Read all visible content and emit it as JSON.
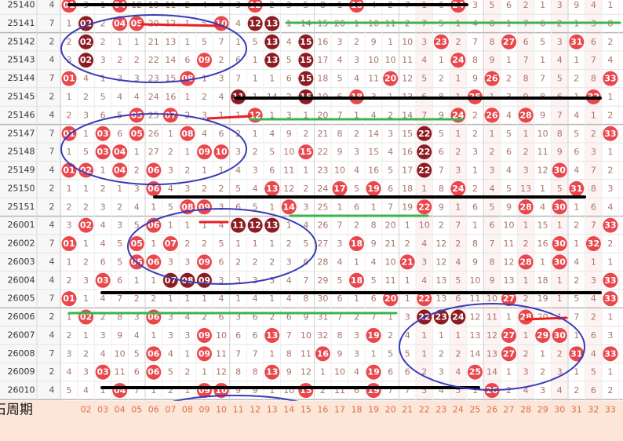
{
  "ball_colors": {
    "red": "#e9474c",
    "dark": "#8c1c22"
  },
  "rows": [
    {
      "period": "25140",
      "count": "4",
      "cells": [
        {
          "text": "01",
          "ball": "red"
        },
        "3",
        "1",
        {
          "text": "04",
          "ball": "red"
        },
        "12",
        "19",
        "11",
        "2",
        "4",
        "9",
        "3",
        {
          "text": "12",
          "ball": "red"
        },
        "2",
        "3",
        "5",
        "8",
        "1",
        {
          "text": "18",
          "ball": "red"
        },
        "4",
        "2",
        "7",
        "1",
        "6",
        {
          "text": "24",
          "ball": "red"
        },
        "3",
        "5",
        "6",
        "2",
        "1",
        "3",
        "9",
        "4",
        "1"
      ]
    },
    {
      "period": "25141",
      "count": "7",
      "cells": [
        "1",
        {
          "text": "02",
          "ball": "dark"
        },
        "2",
        {
          "text": "04",
          "ball": "red"
        },
        {
          "text": "05",
          "ball": "red"
        },
        "20",
        "12",
        "1",
        "5",
        {
          "text": "10",
          "ball": "red"
        },
        "4",
        {
          "text": "12",
          "ball": "dark"
        },
        {
          "text": "13",
          "ball": "dark"
        },
        "1",
        "14",
        "15",
        "20",
        "1",
        "10",
        "11",
        "2",
        "7",
        "5",
        "1",
        "4",
        "6",
        "1",
        "7",
        "6",
        "2",
        "1",
        "3",
        "8"
      ]
    },
    {
      "period": "25142",
      "count": "2",
      "cells": [
        "2",
        {
          "text": "02",
          "ball": "dark"
        },
        "2",
        "1",
        "1",
        "21",
        "13",
        "1",
        "5",
        "7",
        "1",
        "5",
        {
          "text": "13",
          "ball": "dark"
        },
        "4",
        {
          "text": "15",
          "ball": "dark"
        },
        "16",
        "3",
        "2",
        "9",
        "1",
        "10",
        "3",
        {
          "text": "23",
          "ball": "red"
        },
        "2",
        "7",
        "8",
        {
          "text": "27",
          "ball": "red"
        },
        "6",
        "5",
        "3",
        {
          "text": "31",
          "ball": "red"
        },
        "6",
        "2"
      ]
    },
    {
      "period": "25143",
      "count": "4",
      "cells": [
        "3",
        {
          "text": "02",
          "ball": "dark"
        },
        "3",
        "2",
        "2",
        "22",
        "14",
        "6",
        {
          "text": "09",
          "ball": "red"
        },
        "2",
        "6",
        "1",
        {
          "text": "13",
          "ball": "dark"
        },
        "5",
        {
          "text": "15",
          "ball": "dark"
        },
        "17",
        "4",
        "3",
        "10",
        "10",
        "11",
        "4",
        "1",
        {
          "text": "24",
          "ball": "red"
        },
        "8",
        "9",
        "1",
        "7",
        "1",
        "4",
        "1",
        "7",
        "4"
      ]
    },
    {
      "period": "25144",
      "count": "7",
      "cells": [
        {
          "text": "01",
          "ball": "red"
        },
        "4",
        "1",
        "3",
        "3",
        "23",
        "15",
        {
          "text": "08",
          "ball": "red"
        },
        "1",
        "3",
        "7",
        "1",
        "1",
        "6",
        {
          "text": "15",
          "ball": "dark"
        },
        "18",
        "5",
        "4",
        "11",
        {
          "text": "20",
          "ball": "red"
        },
        "12",
        "5",
        "2",
        "1",
        "9",
        {
          "text": "26",
          "ball": "red"
        },
        "2",
        "8",
        "7",
        "5",
        "2",
        "8",
        {
          "text": "33",
          "ball": "red"
        }
      ]
    },
    {
      "period": "25145",
      "count": "2",
      "cells": [
        "1",
        "2",
        "5",
        "4",
        "4",
        "24",
        "16",
        "1",
        "2",
        "4",
        {
          "text": "11",
          "ball": "dark"
        },
        "1",
        "14",
        "2",
        {
          "text": "15",
          "ball": "dark"
        },
        "19",
        "6",
        {
          "text": "18",
          "ball": "red"
        },
        "3",
        "1",
        "13",
        "6",
        "8",
        "1",
        {
          "text": "25",
          "ball": "red"
        },
        "1",
        "3",
        "9",
        "8",
        "6",
        "1",
        {
          "text": "32",
          "ball": "red"
        },
        "1"
      ]
    },
    {
      "period": "25146",
      "count": "4",
      "cells": [
        "2",
        "3",
        "6",
        "5",
        {
          "text": "05",
          "ball": "red"
        },
        "25",
        {
          "text": "07",
          "ball": "red"
        },
        "2",
        "3",
        "1",
        "1",
        {
          "text": "12",
          "ball": "red"
        },
        "1",
        "3",
        "1",
        "20",
        "7",
        "1",
        "4",
        "2",
        "14",
        "7",
        "9",
        {
          "text": "24",
          "ball": "red"
        },
        "2",
        {
          "text": "26",
          "ball": "red"
        },
        "4",
        {
          "text": "28",
          "ball": "red"
        },
        "9",
        "7",
        "4",
        "1",
        "2"
      ]
    },
    {
      "period": "25147",
      "count": "7",
      "cells": [
        {
          "text": "01",
          "ball": "red"
        },
        "1",
        {
          "text": "03",
          "ball": "red"
        },
        "6",
        {
          "text": "05",
          "ball": "red"
        },
        "26",
        "1",
        {
          "text": "08",
          "ball": "red"
        },
        "4",
        "6",
        "2",
        "1",
        "4",
        "9",
        "2",
        "21",
        "8",
        "2",
        "14",
        "3",
        "15",
        {
          "text": "22",
          "ball": "dark"
        },
        "5",
        "1",
        "2",
        "1",
        "5",
        "1",
        "10",
        "8",
        "5",
        "2",
        {
          "text": "33",
          "ball": "red"
        }
      ]
    },
    {
      "period": "25148",
      "count": "7",
      "cells": [
        "1",
        "5",
        {
          "text": "03",
          "ball": "red"
        },
        {
          "text": "04",
          "ball": "red"
        },
        "1",
        "27",
        "2",
        "1",
        {
          "text": "09",
          "ball": "red"
        },
        {
          "text": "10",
          "ball": "red"
        },
        "3",
        "2",
        "5",
        "10",
        {
          "text": "15",
          "ball": "red"
        },
        "22",
        "9",
        "3",
        "15",
        "4",
        "16",
        {
          "text": "22",
          "ball": "dark"
        },
        "6",
        "2",
        "3",
        "2",
        "6",
        "2",
        "11",
        "9",
        "6",
        "3",
        "1"
      ]
    },
    {
      "period": "25149",
      "count": "4",
      "cells": [
        {
          "text": "01",
          "ball": "red"
        },
        {
          "text": "02",
          "ball": "red"
        },
        "1",
        {
          "text": "04",
          "ball": "red"
        },
        "2",
        {
          "text": "06",
          "ball": "red"
        },
        "3",
        "2",
        "1",
        "1",
        "4",
        "3",
        "6",
        "11",
        "1",
        "23",
        "10",
        "4",
        "16",
        "5",
        "17",
        {
          "text": "22",
          "ball": "dark"
        },
        "7",
        "3",
        "1",
        "3",
        "4",
        "3",
        "12",
        {
          "text": "30",
          "ball": "red"
        },
        "4",
        "7",
        "2"
      ]
    },
    {
      "period": "25150",
      "count": "2",
      "cells": [
        "1",
        "1",
        "2",
        "1",
        "3",
        {
          "text": "06",
          "ball": "red"
        },
        "4",
        "3",
        "2",
        "2",
        "5",
        "4",
        {
          "text": "13",
          "ball": "red"
        },
        "12",
        "2",
        "24",
        {
          "text": "17",
          "ball": "red"
        },
        "5",
        {
          "text": "19",
          "ball": "red"
        },
        "6",
        "18",
        "1",
        "8",
        {
          "text": "24",
          "ball": "red"
        },
        "2",
        "4",
        "5",
        "13",
        "1",
        "5",
        {
          "text": "31",
          "ball": "red"
        },
        "8",
        "3"
      ]
    },
    {
      "period": "25151",
      "count": "2",
      "cells": [
        "2",
        "2",
        "3",
        "2",
        "4",
        "1",
        "5",
        {
          "text": "08",
          "ball": "red"
        },
        {
          "text": "09",
          "ball": "red"
        },
        "3",
        "6",
        "5",
        "1",
        {
          "text": "14",
          "ball": "red"
        },
        "3",
        "25",
        "1",
        "6",
        "1",
        "7",
        "19",
        {
          "text": "22",
          "ball": "red"
        },
        "9",
        "1",
        "6",
        "5",
        "9",
        {
          "text": "28",
          "ball": "red"
        },
        "4",
        {
          "text": "30",
          "ball": "red"
        },
        "1",
        "6",
        "4"
      ]
    },
    {
      "period": "26001",
      "count": "4",
      "cells": [
        "3",
        {
          "text": "02",
          "ball": "red"
        },
        "4",
        "3",
        "5",
        {
          "text": "06",
          "ball": "red"
        },
        "1",
        "1",
        "1",
        "4",
        {
          "text": "11",
          "ball": "dark"
        },
        {
          "text": "12",
          "ball": "dark"
        },
        {
          "text": "13",
          "ball": "dark"
        },
        "1",
        "4",
        "26",
        "7",
        "2",
        "8",
        "20",
        "1",
        "10",
        "2",
        "7",
        "1",
        "6",
        "10",
        "1",
        "15",
        "1",
        "2",
        "7",
        {
          "text": "33",
          "ball": "red"
        }
      ]
    },
    {
      "period": "26002",
      "count": "7",
      "cells": [
        {
          "text": "01",
          "ball": "red"
        },
        "1",
        "4",
        "5",
        {
          "text": "05",
          "ball": "red"
        },
        "1",
        {
          "text": "07",
          "ball": "red"
        },
        "2",
        "2",
        "5",
        "1",
        "1",
        "1",
        "2",
        "5",
        "27",
        "3",
        {
          "text": "18",
          "ball": "red"
        },
        "9",
        "21",
        "2",
        "4",
        "12",
        "2",
        "8",
        "7",
        "11",
        "2",
        "16",
        {
          "text": "30",
          "ball": "red"
        },
        "1",
        {
          "text": "32",
          "ball": "red"
        },
        "2"
      ]
    },
    {
      "period": "26003",
      "count": "4",
      "cells": [
        "1",
        "2",
        "6",
        "5",
        {
          "text": "05",
          "ball": "red"
        },
        {
          "text": "06",
          "ball": "red"
        },
        "3",
        "3",
        {
          "text": "09",
          "ball": "red"
        },
        "6",
        "2",
        "2",
        "2",
        "3",
        "6",
        "28",
        "4",
        "1",
        "4",
        "10",
        {
          "text": "21",
          "ball": "red"
        },
        "3",
        "12",
        "4",
        "9",
        "8",
        "12",
        {
          "text": "28",
          "ball": "red"
        },
        "1",
        {
          "text": "30",
          "ball": "red"
        },
        "4",
        "1",
        "1"
      ]
    },
    {
      "period": "26004",
      "count": "4",
      "cells": [
        "2",
        "3",
        {
          "text": "03",
          "ball": "red"
        },
        "6",
        "1",
        "1",
        {
          "text": "07",
          "ball": "dark"
        },
        {
          "text": "08",
          "ball": "dark"
        },
        {
          "text": "09",
          "ball": "dark"
        },
        "3",
        "3",
        "3",
        "3",
        "4",
        "7",
        "29",
        "5",
        {
          "text": "18",
          "ball": "red"
        },
        "5",
        "11",
        "1",
        "4",
        "13",
        "5",
        "10",
        "9",
        "13",
        "1",
        "18",
        "1",
        "2",
        "3",
        {
          "text": "33",
          "ball": "red"
        }
      ]
    },
    {
      "period": "26005",
      "count": "7",
      "cells": [
        {
          "text": "01",
          "ball": "red"
        },
        "1",
        "4",
        "7",
        "2",
        "2",
        "1",
        "1",
        "1",
        "4",
        "1",
        "4",
        "1",
        "4",
        "8",
        "30",
        "6",
        "1",
        "6",
        {
          "text": "20",
          "ball": "red"
        },
        "1",
        {
          "text": "22",
          "ball": "red"
        },
        "13",
        "6",
        "11",
        "10",
        {
          "text": "27",
          "ball": "red"
        },
        "2",
        "19",
        "1",
        "5",
        "4",
        {
          "text": "33",
          "ball": "red"
        }
      ]
    },
    {
      "period": "26006",
      "count": "2",
      "cells": [
        "1",
        {
          "text": "02",
          "ball": "red"
        },
        "2",
        "8",
        "3",
        {
          "text": "06",
          "ball": "red"
        },
        "3",
        "4",
        "2",
        "6",
        "3",
        "6",
        "2",
        "6",
        "9",
        "31",
        "7",
        "2",
        "7",
        "1",
        "3",
        {
          "text": "22",
          "ball": "dark"
        },
        {
          "text": "23",
          "ball": "dark"
        },
        {
          "text": "24",
          "ball": "dark"
        },
        "12",
        "11",
        "1",
        {
          "text": "28",
          "ball": "red"
        },
        "20",
        "1",
        "7",
        "2",
        "1"
      ]
    },
    {
      "period": "26007",
      "count": "4",
      "cells": [
        "2",
        "1",
        "3",
        "9",
        "4",
        "1",
        "3",
        "3",
        {
          "text": "09",
          "ball": "red"
        },
        "10",
        "6",
        "6",
        {
          "text": "13",
          "ball": "red"
        },
        "7",
        "10",
        "32",
        "8",
        "3",
        {
          "text": "19",
          "ball": "red"
        },
        "2",
        "4",
        "1",
        "1",
        "1",
        "13",
        "12",
        {
          "text": "27",
          "ball": "red"
        },
        "1",
        {
          "text": "29",
          "ball": "red"
        },
        {
          "text": "30",
          "ball": "red"
        },
        "1",
        "6",
        "3"
      ]
    },
    {
      "period": "26008",
      "count": "7",
      "cells": [
        "3",
        "2",
        "4",
        "10",
        "5",
        {
          "text": "06",
          "ball": "red"
        },
        "4",
        "1",
        {
          "text": "09",
          "ball": "red"
        },
        "11",
        "7",
        "7",
        "1",
        "8",
        "11",
        {
          "text": "16",
          "ball": "red"
        },
        "9",
        "3",
        "1",
        "5",
        "5",
        "1",
        "2",
        "2",
        "14",
        "13",
        {
          "text": "27",
          "ball": "red"
        },
        "2",
        "1",
        "2",
        {
          "text": "31",
          "ball": "red"
        },
        "4",
        {
          "text": "33",
          "ball": "red"
        }
      ]
    },
    {
      "period": "26009",
      "count": "2",
      "cells": [
        "4",
        "3",
        {
          "text": "03",
          "ball": "red"
        },
        "11",
        "6",
        {
          "text": "06",
          "ball": "red"
        },
        "5",
        "2",
        "1",
        "12",
        "8",
        "8",
        {
          "text": "13",
          "ball": "red"
        },
        "9",
        "12",
        "1",
        "10",
        "4",
        {
          "text": "19",
          "ball": "red"
        },
        "6",
        "6",
        "2",
        "3",
        "4",
        {
          "text": "25",
          "ball": "red"
        },
        "14",
        "1",
        "3",
        "2",
        "3",
        "1",
        "5",
        "1"
      ]
    },
    {
      "period": "26010",
      "count": "4",
      "cells": [
        "5",
        "4",
        "1",
        {
          "text": "04",
          "ball": "red"
        },
        "7",
        "1",
        "2",
        "1",
        {
          "text": "09",
          "ball": "red"
        },
        {
          "text": "10",
          "ball": "red"
        },
        "9",
        "9",
        "1",
        "10",
        {
          "text": "15",
          "ball": "red"
        },
        "2",
        "11",
        "6",
        {
          "text": "19",
          "ball": "red"
        },
        "7",
        "7",
        "3",
        "4",
        "5",
        "1",
        {
          "text": "26",
          "ball": "red"
        },
        "2",
        "4",
        "3",
        "4",
        "2",
        "6",
        "2"
      ]
    }
  ],
  "footer": {
    "label": "绿石周期",
    "numbers": [
      "02",
      "03",
      "04",
      "05",
      "06",
      "07",
      "08",
      "09",
      "10",
      "11",
      "12",
      "13",
      "14",
      "15",
      "16",
      "17",
      "18",
      "19",
      "20",
      "21",
      "22",
      "23",
      "24",
      "25",
      "26",
      "27",
      "28",
      "29",
      "30",
      "31",
      "32",
      "33"
    ]
  }
}
